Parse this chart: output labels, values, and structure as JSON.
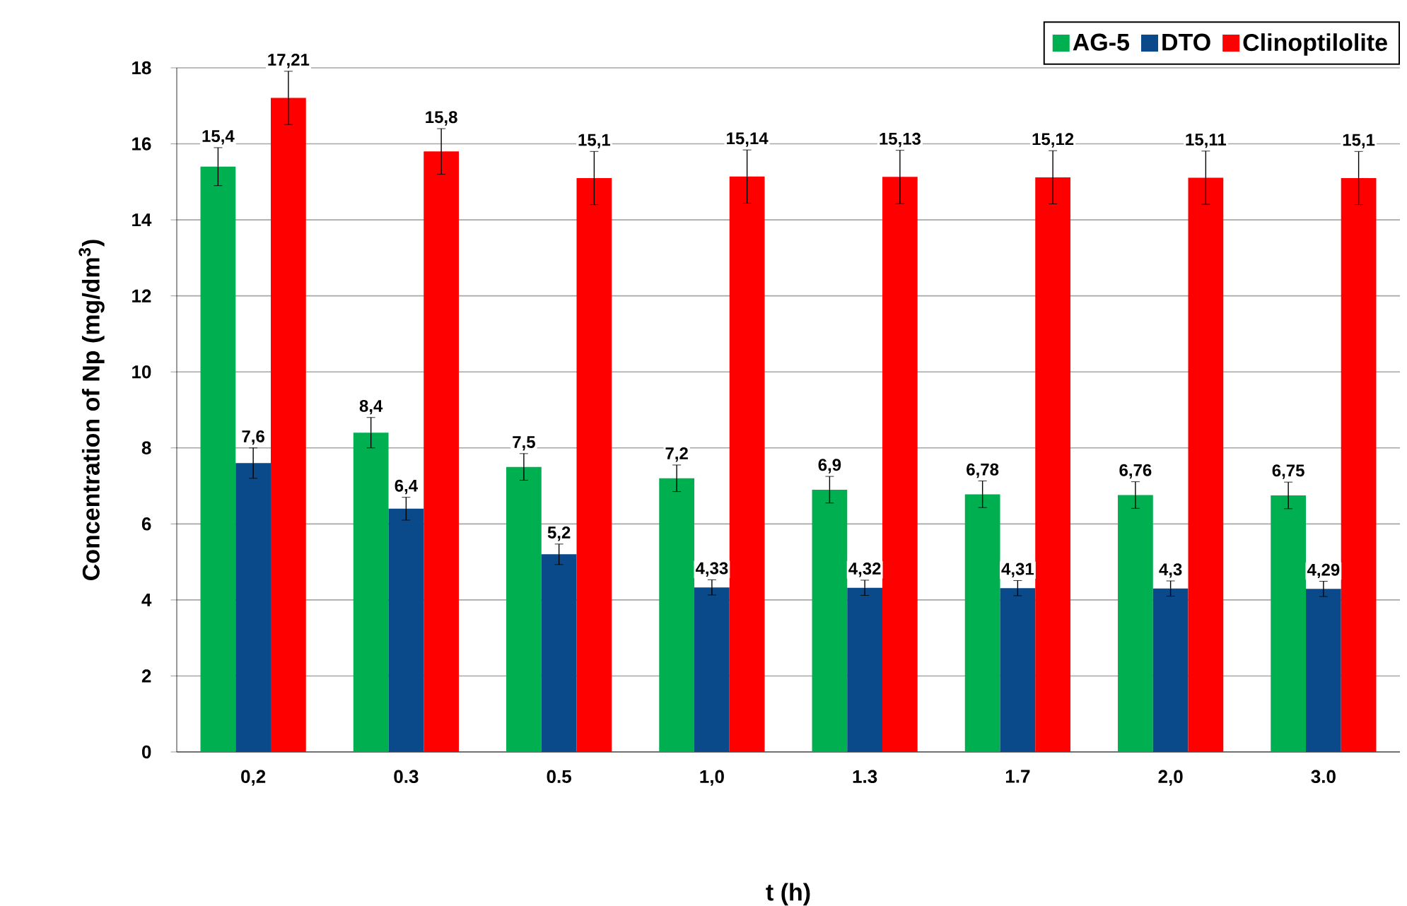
{
  "chart_data": {
    "type": "bar",
    "xlabel": "t (h)",
    "ylabel": "Concentration of Np (mg/dm$^{3}$)",
    "categories": [
      "0,2",
      "0.3",
      "0.5",
      "1,0",
      "1.3",
      "1.7",
      "2,0",
      "3.0"
    ],
    "series": [
      {
        "name": "AG-5",
        "color": "#00b050",
        "values": [
          15.4,
          8.4,
          7.5,
          7.2,
          6.9,
          6.78,
          6.76,
          6.75
        ],
        "errors": [
          0.5,
          0.4,
          0.35,
          0.35,
          0.35,
          0.35,
          0.35,
          0.35
        ],
        "value_labels": [
          "15,4",
          "8,4",
          "7,5",
          "7,2",
          "6,9",
          "6,78",
          "6,76",
          "6,75"
        ]
      },
      {
        "name": "DTO",
        "color": "#0a4a8a",
        "values": [
          7.6,
          6.4,
          5.2,
          4.33,
          4.32,
          4.31,
          4.3,
          4.29
        ],
        "errors": [
          0.4,
          0.3,
          0.27,
          0.2,
          0.2,
          0.2,
          0.2,
          0.2
        ],
        "value_labels": [
          "7,6",
          "6,4",
          "5,2",
          "4,33",
          "4,32",
          "4,31",
          "4,3",
          "4,29"
        ]
      },
      {
        "name": "Clinoptilolite",
        "color": "#ff0000",
        "values": [
          17.21,
          15.8,
          15.1,
          15.14,
          15.13,
          15.12,
          15.11,
          15.1
        ],
        "errors": [
          0.7,
          0.6,
          0.7,
          0.7,
          0.7,
          0.7,
          0.7,
          0.7
        ],
        "value_labels": [
          "17,21",
          "15,8",
          "15,1",
          "15,14",
          "15,13",
          "15,12",
          "15,11",
          "15,1"
        ]
      }
    ],
    "ylim": [
      0,
      18
    ],
    "yticks": [
      0,
      2,
      4,
      6,
      8,
      10,
      12,
      14,
      16,
      18
    ],
    "grid": "y",
    "legend": "top right"
  }
}
